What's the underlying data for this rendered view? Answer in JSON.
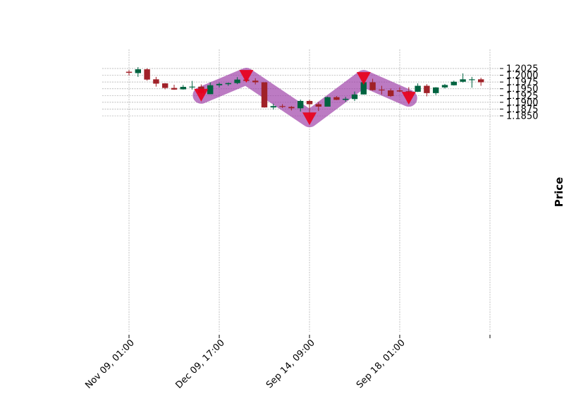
{
  "chart_data": {
    "type": "candlestick",
    "title": "",
    "xlabel": "",
    "ylabel": "Price",
    "ylim": [
      1.1828,
      1.2065
    ],
    "grid": true,
    "y_axis_side": "right",
    "y_ticks": [
      1.185,
      1.1875,
      1.19,
      1.1925,
      1.195,
      1.1975,
      1.2,
      1.2025
    ],
    "y_tick_labels": [
      "1.1850",
      "1.1875",
      "1.1900",
      "1.1925",
      "1.1950",
      "1.1975",
      "1.2000",
      "1.2025"
    ],
    "x_ticks": [
      0,
      10,
      20,
      30,
      40
    ],
    "x_tick_labels": [
      "Nov 09, 01:00",
      "Dec 09, 17:00",
      "Sep 14, 09:00",
      "Sep 18, 01:00",
      ""
    ],
    "colors": {
      "up": "#006340",
      "down": "#a02128",
      "pattern_band": "#9c3da6",
      "marker": "#e8001c",
      "grid": "#a8a8a8"
    },
    "candles": [
      {
        "x": 0,
        "o": 1.2013,
        "h": 1.2019,
        "l": 1.1999,
        "c": 1.2009
      },
      {
        "x": 1,
        "o": 1.2008,
        "h": 1.203,
        "l": 1.1994,
        "c": 1.2022
      },
      {
        "x": 2,
        "o": 1.2022,
        "h": 1.2026,
        "l": 1.198,
        "c": 1.1984
      },
      {
        "x": 3,
        "o": 1.1985,
        "h": 1.1994,
        "l": 1.1958,
        "c": 1.1969
      },
      {
        "x": 4,
        "o": 1.197,
        "h": 1.1971,
        "l": 1.1948,
        "c": 1.1953
      },
      {
        "x": 5,
        "o": 1.1953,
        "h": 1.1965,
        "l": 1.1946,
        "c": 1.1947
      },
      {
        "x": 6,
        "o": 1.1948,
        "h": 1.1964,
        "l": 1.1947,
        "c": 1.1957
      },
      {
        "x": 7,
        "o": 1.1955,
        "h": 1.1979,
        "l": 1.1947,
        "c": 1.1958
      },
      {
        "x": 8,
        "o": 1.1958,
        "h": 1.1966,
        "l": 1.193,
        "c": 1.1935
      },
      {
        "x": 9,
        "o": 1.193,
        "h": 1.1974,
        "l": 1.193,
        "c": 1.1963
      },
      {
        "x": 10,
        "o": 1.1963,
        "h": 1.1973,
        "l": 1.1955,
        "c": 1.1968
      },
      {
        "x": 11,
        "o": 1.1967,
        "h": 1.1973,
        "l": 1.1961,
        "c": 1.1971
      },
      {
        "x": 12,
        "o": 1.1971,
        "h": 1.1993,
        "l": 1.1967,
        "c": 1.1984
      },
      {
        "x": 13,
        "o": 1.1984,
        "h": 1.199,
        "l": 1.1975,
        "c": 1.1979
      },
      {
        "x": 14,
        "o": 1.198,
        "h": 1.1989,
        "l": 1.1966,
        "c": 1.1974
      },
      {
        "x": 15,
        "o": 1.1974,
        "h": 1.1974,
        "l": 1.188,
        "c": 1.1881
      },
      {
        "x": 16,
        "o": 1.1881,
        "h": 1.1895,
        "l": 1.1873,
        "c": 1.1886
      },
      {
        "x": 17,
        "o": 1.1886,
        "h": 1.1893,
        "l": 1.1879,
        "c": 1.1883
      },
      {
        "x": 18,
        "o": 1.1883,
        "h": 1.1886,
        "l": 1.187,
        "c": 1.1878
      },
      {
        "x": 19,
        "o": 1.1878,
        "h": 1.191,
        "l": 1.1866,
        "c": 1.1905
      },
      {
        "x": 20,
        "o": 1.1905,
        "h": 1.1909,
        "l": 1.1835,
        "c": 1.1893
      },
      {
        "x": 21,
        "o": 1.1893,
        "h": 1.1901,
        "l": 1.1868,
        "c": 1.1884
      },
      {
        "x": 22,
        "o": 1.1884,
        "h": 1.1921,
        "l": 1.1884,
        "c": 1.1919
      },
      {
        "x": 23,
        "o": 1.1919,
        "h": 1.1923,
        "l": 1.1908,
        "c": 1.1909
      },
      {
        "x": 24,
        "o": 1.1909,
        "h": 1.192,
        "l": 1.1902,
        "c": 1.1913
      },
      {
        "x": 25,
        "o": 1.1912,
        "h": 1.194,
        "l": 1.1905,
        "c": 1.1929
      },
      {
        "x": 26,
        "o": 1.1929,
        "h": 1.1984,
        "l": 1.1929,
        "c": 1.1974
      },
      {
        "x": 27,
        "o": 1.1974,
        "h": 1.1987,
        "l": 1.1943,
        "c": 1.1945
      },
      {
        "x": 28,
        "o": 1.1947,
        "h": 1.1961,
        "l": 1.1929,
        "c": 1.1945
      },
      {
        "x": 29,
        "o": 1.1944,
        "h": 1.1951,
        "l": 1.192,
        "c": 1.1923
      },
      {
        "x": 30,
        "o": 1.1944,
        "h": 1.1955,
        "l": 1.1938,
        "c": 1.194
      },
      {
        "x": 31,
        "o": 1.1941,
        "h": 1.1956,
        "l": 1.1927,
        "c": 1.1939
      },
      {
        "x": 32,
        "o": 1.1939,
        "h": 1.197,
        "l": 1.1938,
        "c": 1.1961
      },
      {
        "x": 33,
        "o": 1.1961,
        "h": 1.1967,
        "l": 1.1922,
        "c": 1.1934
      },
      {
        "x": 34,
        "o": 1.1934,
        "h": 1.1956,
        "l": 1.1927,
        "c": 1.1955
      },
      {
        "x": 35,
        "o": 1.1955,
        "h": 1.1968,
        "l": 1.1951,
        "c": 1.1964
      },
      {
        "x": 36,
        "o": 1.1963,
        "h": 1.198,
        "l": 1.1962,
        "c": 1.1976
      },
      {
        "x": 37,
        "o": 1.1976,
        "h": 1.2007,
        "l": 1.1973,
        "c": 1.1985
      },
      {
        "x": 38,
        "o": 1.1985,
        "h": 1.1994,
        "l": 1.1954,
        "c": 1.1985
      },
      {
        "x": 39,
        "o": 1.1985,
        "h": 1.1991,
        "l": 1.1961,
        "c": 1.1974
      }
    ],
    "pattern_points": [
      {
        "x": 8,
        "y": 1.1926
      },
      {
        "x": 13,
        "y": 1.1996
      },
      {
        "x": 20,
        "y": 1.1839
      },
      {
        "x": 26,
        "y": 1.1988
      },
      {
        "x": 31,
        "y": 1.1915
      }
    ],
    "markers": [
      {
        "x": 8,
        "y": 1.1926
      },
      {
        "x": 13,
        "y": 1.1996
      },
      {
        "x": 20,
        "y": 1.1839
      },
      {
        "x": 26,
        "y": 1.1988
      },
      {
        "x": 31,
        "y": 1.1915
      }
    ]
  }
}
